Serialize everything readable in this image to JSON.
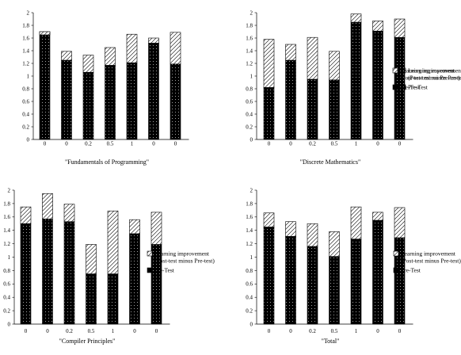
{
  "legend": {
    "improvement_label_line1": "Learning improvement",
    "improvement_label_line2": "(Post-test minus Pre-test)",
    "pretest_label": "Pre-Test"
  },
  "chart_data": [
    {
      "type": "bar",
      "stacked": true,
      "title": "\"Fundamentals of Programming\"",
      "categories": [
        "0",
        "0",
        "0.2",
        "0.5",
        "1",
        "0",
        "0"
      ],
      "ylim": [
        0,
        2
      ],
      "yticks": [
        "0",
        "0.2",
        "0.4",
        "0.6",
        "0.8",
        "1",
        "1.2",
        "1.4",
        "1.6",
        "1.8",
        "2"
      ],
      "legend_position": "right",
      "series": [
        {
          "name": "Pre-Test",
          "values": [
            1.7,
            1.25,
            1.06,
            1.17,
            1.21,
            1.52,
            1.19
          ]
        },
        {
          "name": "Learning improvement (Post-test minus Pre-test)",
          "values": [
            -0.05,
            0.14,
            0.27,
            0.28,
            0.45,
            0.08,
            0.5
          ]
        }
      ]
    },
    {
      "type": "bar",
      "stacked": true,
      "title": "\"Discrete Mathematics\"",
      "categories": [
        "0",
        "0",
        "0.2",
        "0.5",
        "1",
        "0",
        "0"
      ],
      "ylim": [
        0,
        2
      ],
      "yticks": [
        "0",
        "0.2",
        "0.4",
        "0.6",
        "0.8",
        "1",
        "1.2",
        "1.4",
        "1.6",
        "1.8",
        "2"
      ],
      "legend_position": "right",
      "series": [
        {
          "name": "Pre-Test",
          "values": [
            0.82,
            1.25,
            0.95,
            0.94,
            1.85,
            1.71,
            1.61
          ]
        },
        {
          "name": "Learning improvement (Post-test minus Pre-test)",
          "values": [
            0.76,
            0.25,
            0.66,
            0.45,
            0.13,
            0.16,
            0.29
          ]
        }
      ]
    },
    {
      "type": "bar",
      "stacked": true,
      "title": "\"Compiler Principles\"",
      "categories": [
        "0",
        "0",
        "0.2",
        "0.5",
        "1",
        "0",
        "0"
      ],
      "ylim": [
        0,
        2
      ],
      "yticks": [
        "0",
        "0.2",
        "0.4",
        "0.6",
        "0.8",
        "1",
        "1.2",
        "1.4",
        "1.6",
        "1.8",
        "2"
      ],
      "legend_position": "right",
      "series": [
        {
          "name": "Pre-Test",
          "values": [
            1.5,
            1.57,
            1.53,
            0.75,
            0.75,
            1.35,
            1.19
          ]
        },
        {
          "name": "Learning improvement (Post-test minus Pre-test)",
          "values": [
            0.25,
            0.38,
            0.26,
            0.44,
            0.94,
            0.21,
            0.48
          ]
        }
      ]
    },
    {
      "type": "bar",
      "stacked": true,
      "title": "\"Total\"",
      "categories": [
        "0",
        "0",
        "0.2",
        "0.5",
        "1",
        "0",
        "0"
      ],
      "ylim": [
        0,
        2
      ],
      "yticks": [
        "0",
        "0.2",
        "0.4",
        "0.6",
        "0.8",
        "1",
        "1.2",
        "1.4",
        "1.6",
        "1.8",
        "2"
      ],
      "legend_position": "right",
      "series": [
        {
          "name": "Pre-Test",
          "values": [
            1.45,
            1.31,
            1.16,
            1.01,
            1.27,
            1.55,
            1.29
          ]
        },
        {
          "name": "Learning improvement (Post-test minus Pre-test)",
          "values": [
            0.21,
            0.22,
            0.34,
            0.37,
            0.48,
            0.12,
            0.45
          ]
        }
      ]
    }
  ]
}
